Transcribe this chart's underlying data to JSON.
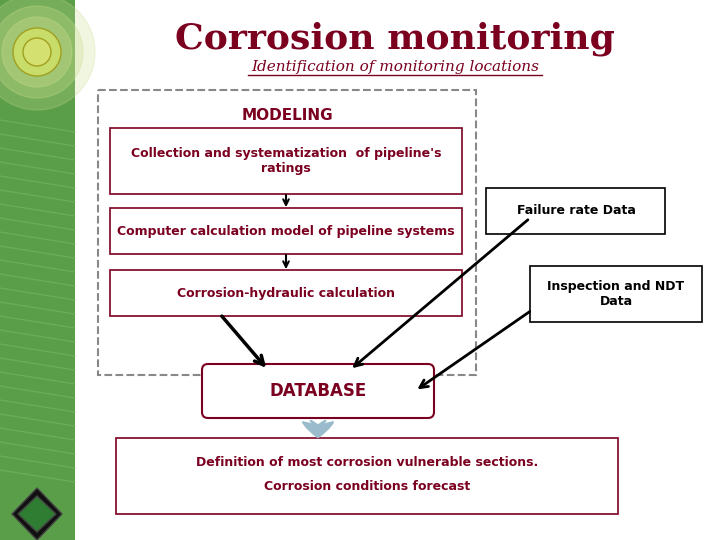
{
  "title": "Corrosion monitoring",
  "subtitle": "Identification of monitoring locations",
  "title_color": "#7B0020",
  "subtitle_color": "#7B0020",
  "bg_color": "#FFFFFF",
  "left_bar_color": "#4A8C3F",
  "text_dark": "#7B0020",
  "box_modeling_label": "MODELING",
  "box1_text": "Collection and systematization  of pipeline's\nratings",
  "box2_text": "Computer calculation model of pipeline systems",
  "box3_text": "Corrosion-hydraulic calculation",
  "box_db_text": "DATABASE",
  "box_final_line1": "Definition of most corrosion vulnerable sections.",
  "box_final_line2": "Corrosion conditions forecast",
  "box_fr_text": "Failure rate Data",
  "box_ndt_text": "Inspection and NDT\nData"
}
